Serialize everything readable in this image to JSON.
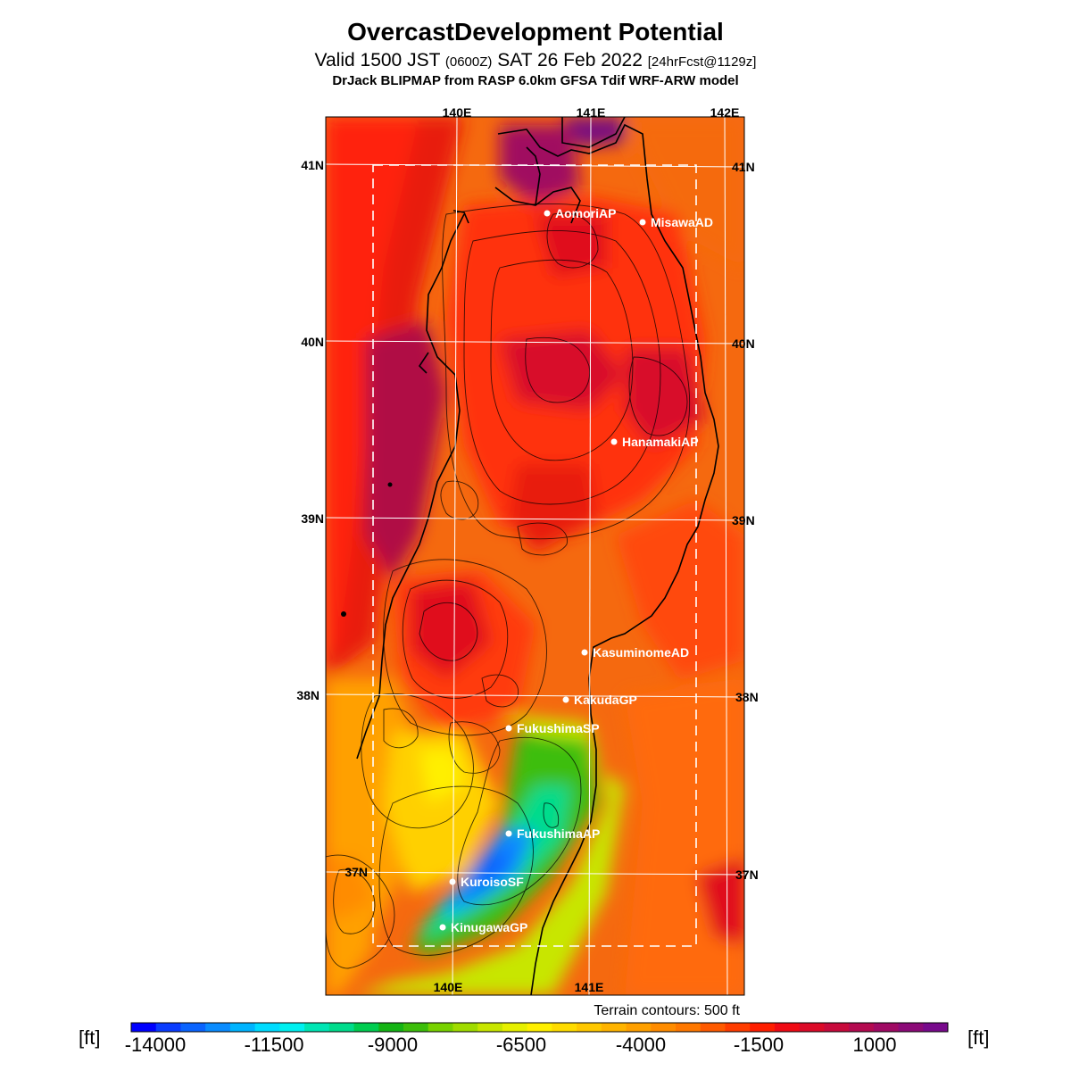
{
  "header": {
    "title": "OvercastDevelopment Potential",
    "valid_prefix": "Valid 1500 JST",
    "valid_utc": "(0600Z)",
    "valid_date": "SAT 26 Feb 2022",
    "forecast": "[24hrFcst@1129z]",
    "model": "DrJack BLIPMAP from RASP 6.0km GFSA Tdif WRF-ARW model"
  },
  "map": {
    "region": "Tohoku, northern Honshu, Japan",
    "lon_ticks": [
      "140E",
      "141E",
      "142E"
    ],
    "lat_ticks": [
      "41N",
      "40N",
      "39N",
      "38N",
      "37N"
    ],
    "stations": [
      {
        "id": "aomori",
        "name": "AomoriAP"
      },
      {
        "id": "misawa",
        "name": "MisawaAD"
      },
      {
        "id": "hanamaki",
        "name": "HanamakiAP"
      },
      {
        "id": "kasuminome",
        "name": "KasuminomeAD"
      },
      {
        "id": "kakuda",
        "name": "KakudaGP"
      },
      {
        "id": "fukushima-sp",
        "name": "FukushimaSP"
      },
      {
        "id": "fukushima-ap",
        "name": "FukushimaAP"
      },
      {
        "id": "kuroiso",
        "name": "KuroisoSF"
      },
      {
        "id": "kinugawa",
        "name": "KinugawaGP"
      }
    ],
    "terrain_note": "Terrain contours: 500 ft",
    "colors": {
      "land_bg": "#f5690f",
      "sea_bg": "#ff3a10",
      "station_dot": "#ffffff",
      "grid": "#ffffff"
    }
  },
  "legend": {
    "unit_left": "[ft]",
    "unit_right": "[ft]",
    "labels": [
      "-14000",
      "-11500",
      "-9000",
      "-6500",
      "-4000",
      "-1500",
      "1000"
    ],
    "colors": [
      "#0000ff",
      "#0a3cff",
      "#0a64ff",
      "#0a8cff",
      "#00b4ff",
      "#00dcff",
      "#00f0f0",
      "#00e6b4",
      "#00dc8c",
      "#00cd50",
      "#14b414",
      "#3cbe0a",
      "#78d200",
      "#a0dc00",
      "#c8e600",
      "#e6f000",
      "#fff000",
      "#ffdc00",
      "#ffc800",
      "#ffb400",
      "#ffa000",
      "#ff8c00",
      "#ff7800",
      "#ff5a00",
      "#ff3c00",
      "#ff1e00",
      "#f00a14",
      "#dc0a28",
      "#c80a3c",
      "#b40a50",
      "#a00a64",
      "#8c0a78",
      "#780a8c"
    ]
  }
}
